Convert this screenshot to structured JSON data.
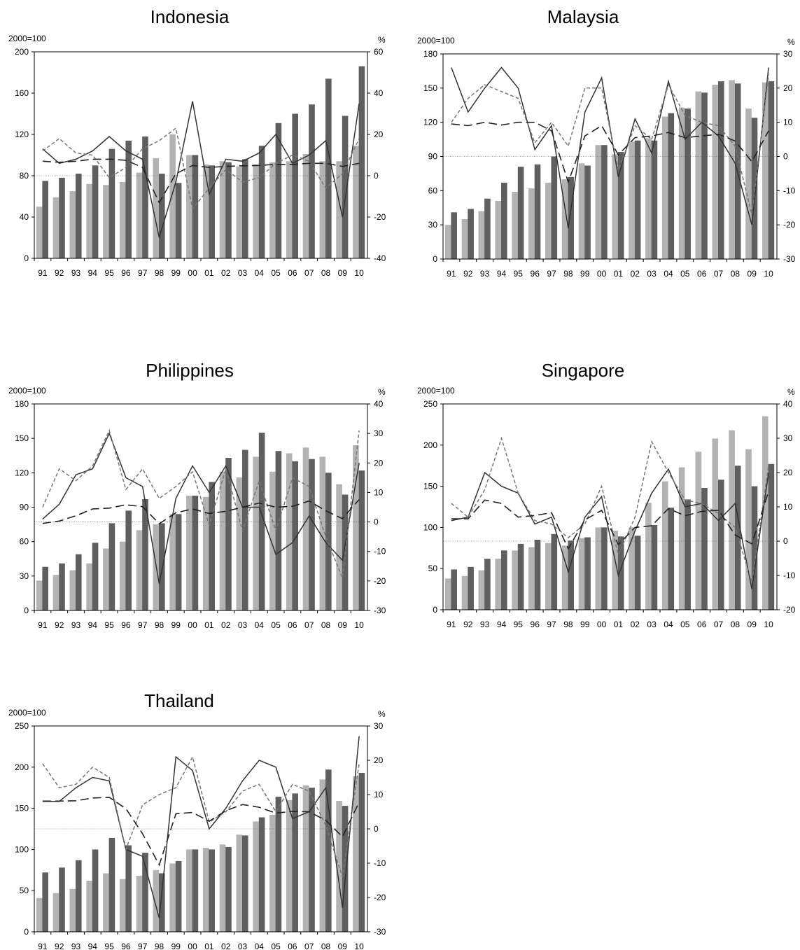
{
  "chart_data": [
    {
      "type": "bar",
      "title": "Indonesia",
      "left_unit": "2000=100",
      "right_unit": "%",
      "categories": [
        "91",
        "92",
        "93",
        "94",
        "95",
        "96",
        "97",
        "98",
        "99",
        "00",
        "01",
        "02",
        "03",
        "04",
        "05",
        "06",
        "07",
        "08",
        "09",
        "10"
      ],
      "ylim_left": [
        0,
        200
      ],
      "ylim_right": [
        -40,
        60
      ],
      "left_ticks": [
        0,
        40,
        80,
        120,
        160,
        200
      ],
      "right_ticks": [
        -40,
        -20,
        0,
        20,
        40,
        60
      ],
      "series": [
        {
          "kind": "bar",
          "color": "#b3b3b3",
          "values": [
            50,
            59,
            65,
            72,
            71,
            74,
            83,
            97,
            120,
            100,
            91,
            94,
            89,
            91,
            93,
            94,
            101,
            94,
            94,
            109
          ]
        },
        {
          "kind": "bar",
          "color": "#5f5f5f",
          "values": [
            75,
            78,
            82,
            90,
            106,
            114,
            118,
            82,
            73,
            100,
            90,
            93,
            96,
            109,
            131,
            140,
            149,
            174,
            138,
            186
          ]
        },
        {
          "kind": "line",
          "axis": "right",
          "color": "#333333",
          "dash": "",
          "values": [
            13,
            6,
            8,
            12,
            19,
            12,
            8,
            -30,
            -3,
            36,
            -9,
            8,
            7,
            11,
            20,
            6,
            10,
            17,
            -20,
            35
          ]
        },
        {
          "kind": "line",
          "axis": "right",
          "color": "#777777",
          "dash": "5,3",
          "values": [
            12,
            18,
            11,
            10,
            -1,
            4,
            13,
            17,
            23,
            -16,
            -6,
            3,
            -3,
            -1,
            6,
            10,
            7,
            -6,
            1,
            18
          ]
        },
        {
          "kind": "line",
          "axis": "right",
          "color": "#222222",
          "dash": "12,6",
          "values": [
            7,
            6.5,
            7,
            8,
            8,
            7.5,
            4,
            -13,
            1,
            5,
            4,
            4.5,
            4.8,
            5,
            5.5,
            5.5,
            6,
            6,
            4.5,
            6
          ]
        }
      ]
    },
    {
      "type": "bar",
      "title": "Malaysia",
      "left_unit": "2000=100",
      "right_unit": "%",
      "categories": [
        "91",
        "92",
        "93",
        "94",
        "95",
        "96",
        "97",
        "98",
        "99",
        "00",
        "01",
        "02",
        "03",
        "04",
        "05",
        "06",
        "07",
        "08",
        "09",
        "10"
      ],
      "ylim_left": [
        0,
        180
      ],
      "ylim_right": [
        -30,
        30
      ],
      "left_ticks": [
        0,
        30,
        60,
        90,
        120,
        150,
        180
      ],
      "right_ticks": [
        -30,
        -20,
        -10,
        0,
        10,
        20,
        30
      ],
      "series": [
        {
          "kind": "bar",
          "color": "#b3b3b3",
          "values": [
            30,
            35,
            42,
            51,
            59,
            62,
            67,
            70,
            84,
            100,
            92,
            103,
            106,
            125,
            133,
            147,
            153,
            157,
            132,
            155
          ]
        },
        {
          "kind": "bar",
          "color": "#5f5f5f",
          "values": [
            41,
            44,
            53,
            67,
            81,
            83,
            90,
            72,
            82,
            100,
            94,
            104,
            104,
            128,
            132,
            146,
            156,
            154,
            124,
            156
          ]
        },
        {
          "kind": "line",
          "axis": "right",
          "color": "#333333",
          "dash": "",
          "values": [
            26,
            13,
            20,
            26,
            20,
            2,
            9,
            -21,
            13,
            23,
            -6,
            11,
            1,
            22,
            5,
            10,
            6,
            -2,
            -20,
            26
          ]
        },
        {
          "kind": "line",
          "axis": "right",
          "color": "#777777",
          "dash": "5,3",
          "values": [
            10,
            17,
            21,
            19,
            17,
            4,
            10,
            3,
            20,
            20,
            -4,
            9,
            5,
            21,
            12,
            10,
            9,
            3,
            -17,
            24
          ]
        },
        {
          "kind": "line",
          "axis": "right",
          "color": "#222222",
          "dash": "12,6",
          "values": [
            9.5,
            9,
            10,
            9.2,
            10,
            10,
            7.5,
            -7.5,
            6,
            9,
            0.5,
            5.5,
            6,
            7,
            5.5,
            6,
            6.5,
            4.5,
            -1.5,
            7.5
          ]
        }
      ]
    },
    {
      "type": "bar",
      "title": "Philippines",
      "left_unit": "2000=100",
      "right_unit": "%",
      "categories": [
        "91",
        "92",
        "93",
        "94",
        "95",
        "96",
        "97",
        "98",
        "99",
        "00",
        "01",
        "02",
        "03",
        "04",
        "05",
        "06",
        "07",
        "08",
        "09",
        "10"
      ],
      "ylim_left": [
        0,
        180
      ],
      "ylim_right": [
        -30,
        40
      ],
      "left_ticks": [
        0,
        30,
        60,
        90,
        120,
        150,
        180
      ],
      "right_ticks": [
        -30,
        -20,
        -10,
        0,
        10,
        20,
        30,
        40
      ],
      "series": [
        {
          "kind": "bar",
          "color": "#b3b3b3",
          "values": [
            26,
            31,
            35,
            41,
            54,
            60,
            70,
            75,
            84,
            100,
            99,
            121,
            116,
            134,
            121,
            137,
            142,
            134,
            110,
            144
          ]
        },
        {
          "kind": "bar",
          "color": "#5f5f5f",
          "values": [
            38,
            41,
            49,
            59,
            76,
            87,
            97,
            76,
            84,
            100,
            112,
            133,
            140,
            155,
            139,
            130,
            132,
            120,
            101,
            122
          ]
        },
        {
          "kind": "line",
          "axis": "right",
          "color": "#333333",
          "dash": "",
          "values": [
            1,
            6,
            16,
            18,
            30,
            15,
            12,
            -21,
            8,
            19,
            10,
            19,
            5,
            5,
            -11,
            -7,
            2,
            -7,
            -13,
            20
          ]
        },
        {
          "kind": "line",
          "axis": "right",
          "color": "#777777",
          "dash": "5,3",
          "values": [
            5,
            18,
            14,
            19,
            31,
            11,
            18,
            8,
            12,
            17,
            -1,
            18,
            -3,
            14,
            -3,
            15,
            12,
            -5,
            -19,
            31
          ]
        },
        {
          "kind": "line",
          "axis": "right",
          "color": "#222222",
          "dash": "12,6",
          "values": [
            -0.5,
            0.3,
            2.1,
            4.4,
            4.7,
            5.8,
            5.2,
            -0.6,
            3.1,
            4.4,
            2.9,
            3.6,
            5.0,
            6.4,
            5.0,
            5.3,
            7.1,
            3.8,
            1.1,
            7.6
          ]
        }
      ]
    },
    {
      "type": "bar",
      "title": "Singapore",
      "left_unit": "2000=100",
      "right_unit": "%",
      "categories": [
        "91",
        "92",
        "93",
        "94",
        "95",
        "96",
        "97",
        "98",
        "99",
        "00",
        "01",
        "02",
        "03",
        "04",
        "05",
        "06",
        "07",
        "08",
        "09",
        "10"
      ],
      "ylim_left": [
        0,
        250
      ],
      "ylim_right": [
        -20,
        40
      ],
      "left_ticks": [
        0,
        50,
        100,
        150,
        200,
        250
      ],
      "right_ticks": [
        -20,
        -10,
        0,
        10,
        20,
        30,
        40
      ],
      "series": [
        {
          "kind": "bar",
          "color": "#b3b3b3",
          "values": [
            38,
            41,
            48,
            62,
            72,
            76,
            81,
            78,
            87,
            100,
            96,
            100,
            130,
            156,
            173,
            192,
            208,
            218,
            195,
            235
          ]
        },
        {
          "kind": "bar",
          "color": "#5f5f5f",
          "values": [
            49,
            52,
            62,
            72,
            80,
            85,
            92,
            84,
            88,
            100,
            89,
            90,
            103,
            124,
            134,
            148,
            158,
            175,
            150,
            177
          ]
        },
        {
          "kind": "line",
          "axis": "right",
          "color": "#333333",
          "dash": "",
          "values": [
            6,
            7,
            20,
            16,
            14,
            5,
            7,
            -9,
            7,
            13,
            -10,
            3,
            14,
            21,
            10,
            11,
            6,
            11,
            -14,
            20
          ]
        },
        {
          "kind": "line",
          "axis": "right",
          "color": "#777777",
          "dash": "5,3",
          "values": [
            11,
            7,
            15,
            30,
            14,
            6,
            5,
            1,
            5,
            16,
            -4,
            7,
            29,
            20,
            12,
            11,
            8,
            4,
            -12,
            22
          ]
        },
        {
          "kind": "line",
          "axis": "right",
          "color": "#222222",
          "dash": "12,6",
          "values": [
            6.5,
            6.5,
            12,
            11,
            7,
            7.5,
            8.3,
            -2.2,
            6.2,
            9,
            -1,
            4,
            4.5,
            9.5,
            7.4,
            8.7,
            9,
            1.8,
            -0.8,
            14.5
          ]
        }
      ]
    },
    {
      "type": "bar",
      "title": "Thailand",
      "left_unit": "2000=100",
      "right_unit": "%",
      "categories": [
        "91",
        "92",
        "93",
        "94",
        "95",
        "96",
        "97",
        "98",
        "99",
        "00",
        "01",
        "02",
        "03",
        "04",
        "05",
        "06",
        "07",
        "08",
        "09",
        "10"
      ],
      "ylim_left": [
        0,
        250
      ],
      "ylim_right": [
        -30,
        30
      ],
      "left_ticks": [
        0,
        50,
        100,
        150,
        200,
        250
      ],
      "right_ticks": [
        -30,
        -20,
        -10,
        0,
        10,
        20,
        30
      ],
      "series": [
        {
          "kind": "bar",
          "color": "#b3b3b3",
          "values": [
            41,
            47,
            52,
            62,
            71,
            64,
            68,
            75,
            83,
            100,
            102,
            106,
            118,
            134,
            142,
            160,
            178,
            185,
            159,
            189
          ]
        },
        {
          "kind": "bar",
          "color": "#5f5f5f",
          "values": [
            72,
            78,
            87,
            100,
            114,
            105,
            96,
            71,
            86,
            100,
            100,
            103,
            117,
            139,
            164,
            168,
            175,
            197,
            153,
            193
          ]
        },
        {
          "kind": "line",
          "axis": "right",
          "color": "#333333",
          "dash": "",
          "values": [
            8,
            8,
            12,
            15,
            14,
            -6,
            -8,
            -26,
            21,
            17,
            0,
            6,
            14,
            20,
            18,
            3,
            5,
            12,
            -23,
            27
          ]
        },
        {
          "kind": "line",
          "axis": "right",
          "color": "#777777",
          "dash": "5,3",
          "values": [
            19,
            12,
            13,
            18,
            15,
            -6,
            7,
            10,
            12,
            21,
            2,
            5,
            11,
            13,
            5,
            13,
            11,
            1,
            -14,
            19
          ]
        },
        {
          "kind": "line",
          "axis": "right",
          "color": "#222222",
          "dash": "12,6",
          "values": [
            8.1,
            8.1,
            8.2,
            9.0,
            9.2,
            5.9,
            -1.4,
            -10.5,
            4.4,
            4.8,
            2.2,
            5.3,
            7.1,
            6.3,
            4.6,
            5.1,
            5.0,
            2.5,
            -2.3,
            7.8
          ]
        }
      ]
    }
  ]
}
